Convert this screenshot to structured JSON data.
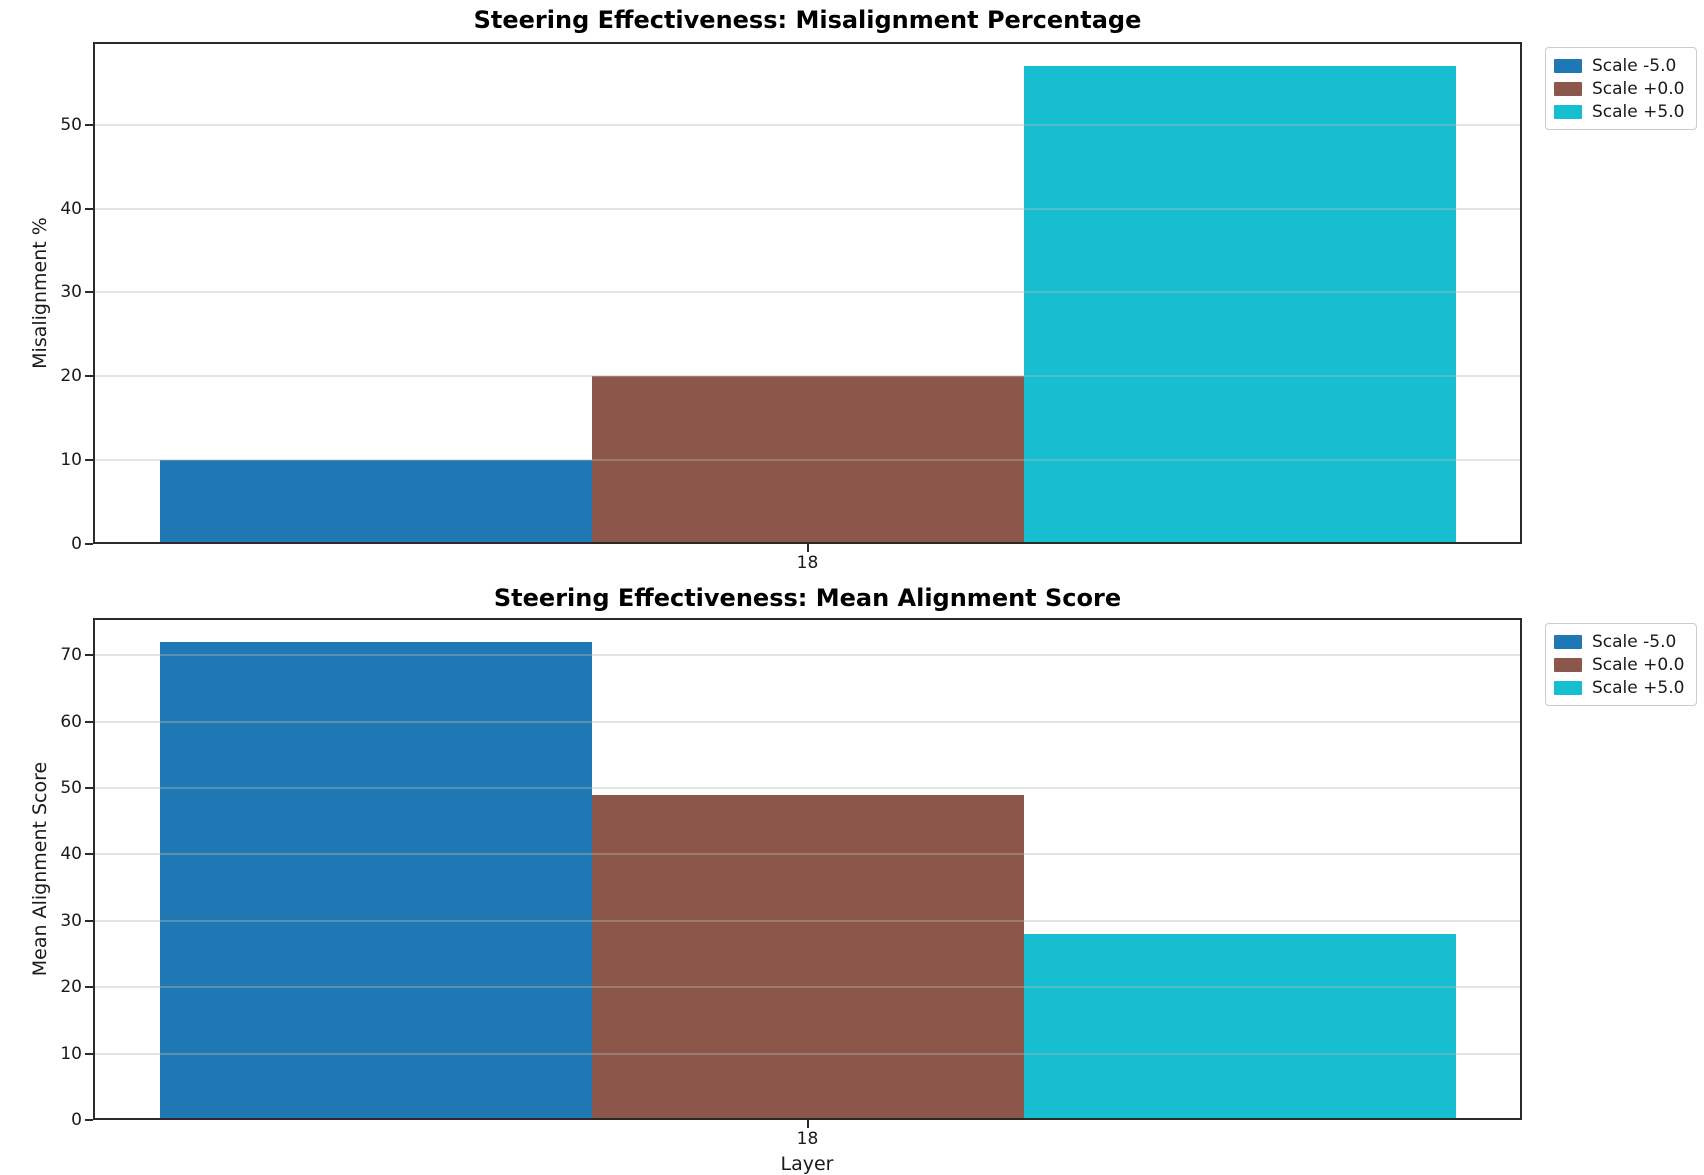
{
  "figure": {
    "background": "#ffffff",
    "spine_color": "#2b2b2b",
    "grid_color": "#bdbdbd"
  },
  "chart_data": [
    {
      "type": "bar",
      "title": "Steering Effectiveness: Misalignment Percentage",
      "xlabel": "",
      "ylabel": "Misalignment %",
      "categories": [
        "18"
      ],
      "series": [
        {
          "name": "Scale -5.0",
          "color": "#1f77b4",
          "values": [
            10
          ]
        },
        {
          "name": "Scale +0.0",
          "color": "#8c564b",
          "values": [
            20
          ]
        },
        {
          "name": "Scale +5.0",
          "color": "#17becf",
          "values": [
            57
          ]
        }
      ],
      "yticks": [
        0,
        10,
        20,
        30,
        40,
        50
      ],
      "ylim": [
        0,
        59.85
      ],
      "grid": true,
      "legend_position": "outside-top-right"
    },
    {
      "type": "bar",
      "title": "Steering Effectiveness: Mean Alignment Score",
      "xlabel": "Layer",
      "ylabel": "Mean Alignment Score",
      "categories": [
        "18"
      ],
      "series": [
        {
          "name": "Scale -5.0",
          "color": "#1f77b4",
          "values": [
            72
          ]
        },
        {
          "name": "Scale +0.0",
          "color": "#8c564b",
          "values": [
            49
          ]
        },
        {
          "name": "Scale +5.0",
          "color": "#17becf",
          "values": [
            28
          ]
        }
      ],
      "yticks": [
        0,
        10,
        20,
        30,
        40,
        50,
        60,
        70
      ],
      "ylim": [
        0,
        75.6
      ],
      "grid": true,
      "legend_position": "outside-top-right"
    }
  ]
}
